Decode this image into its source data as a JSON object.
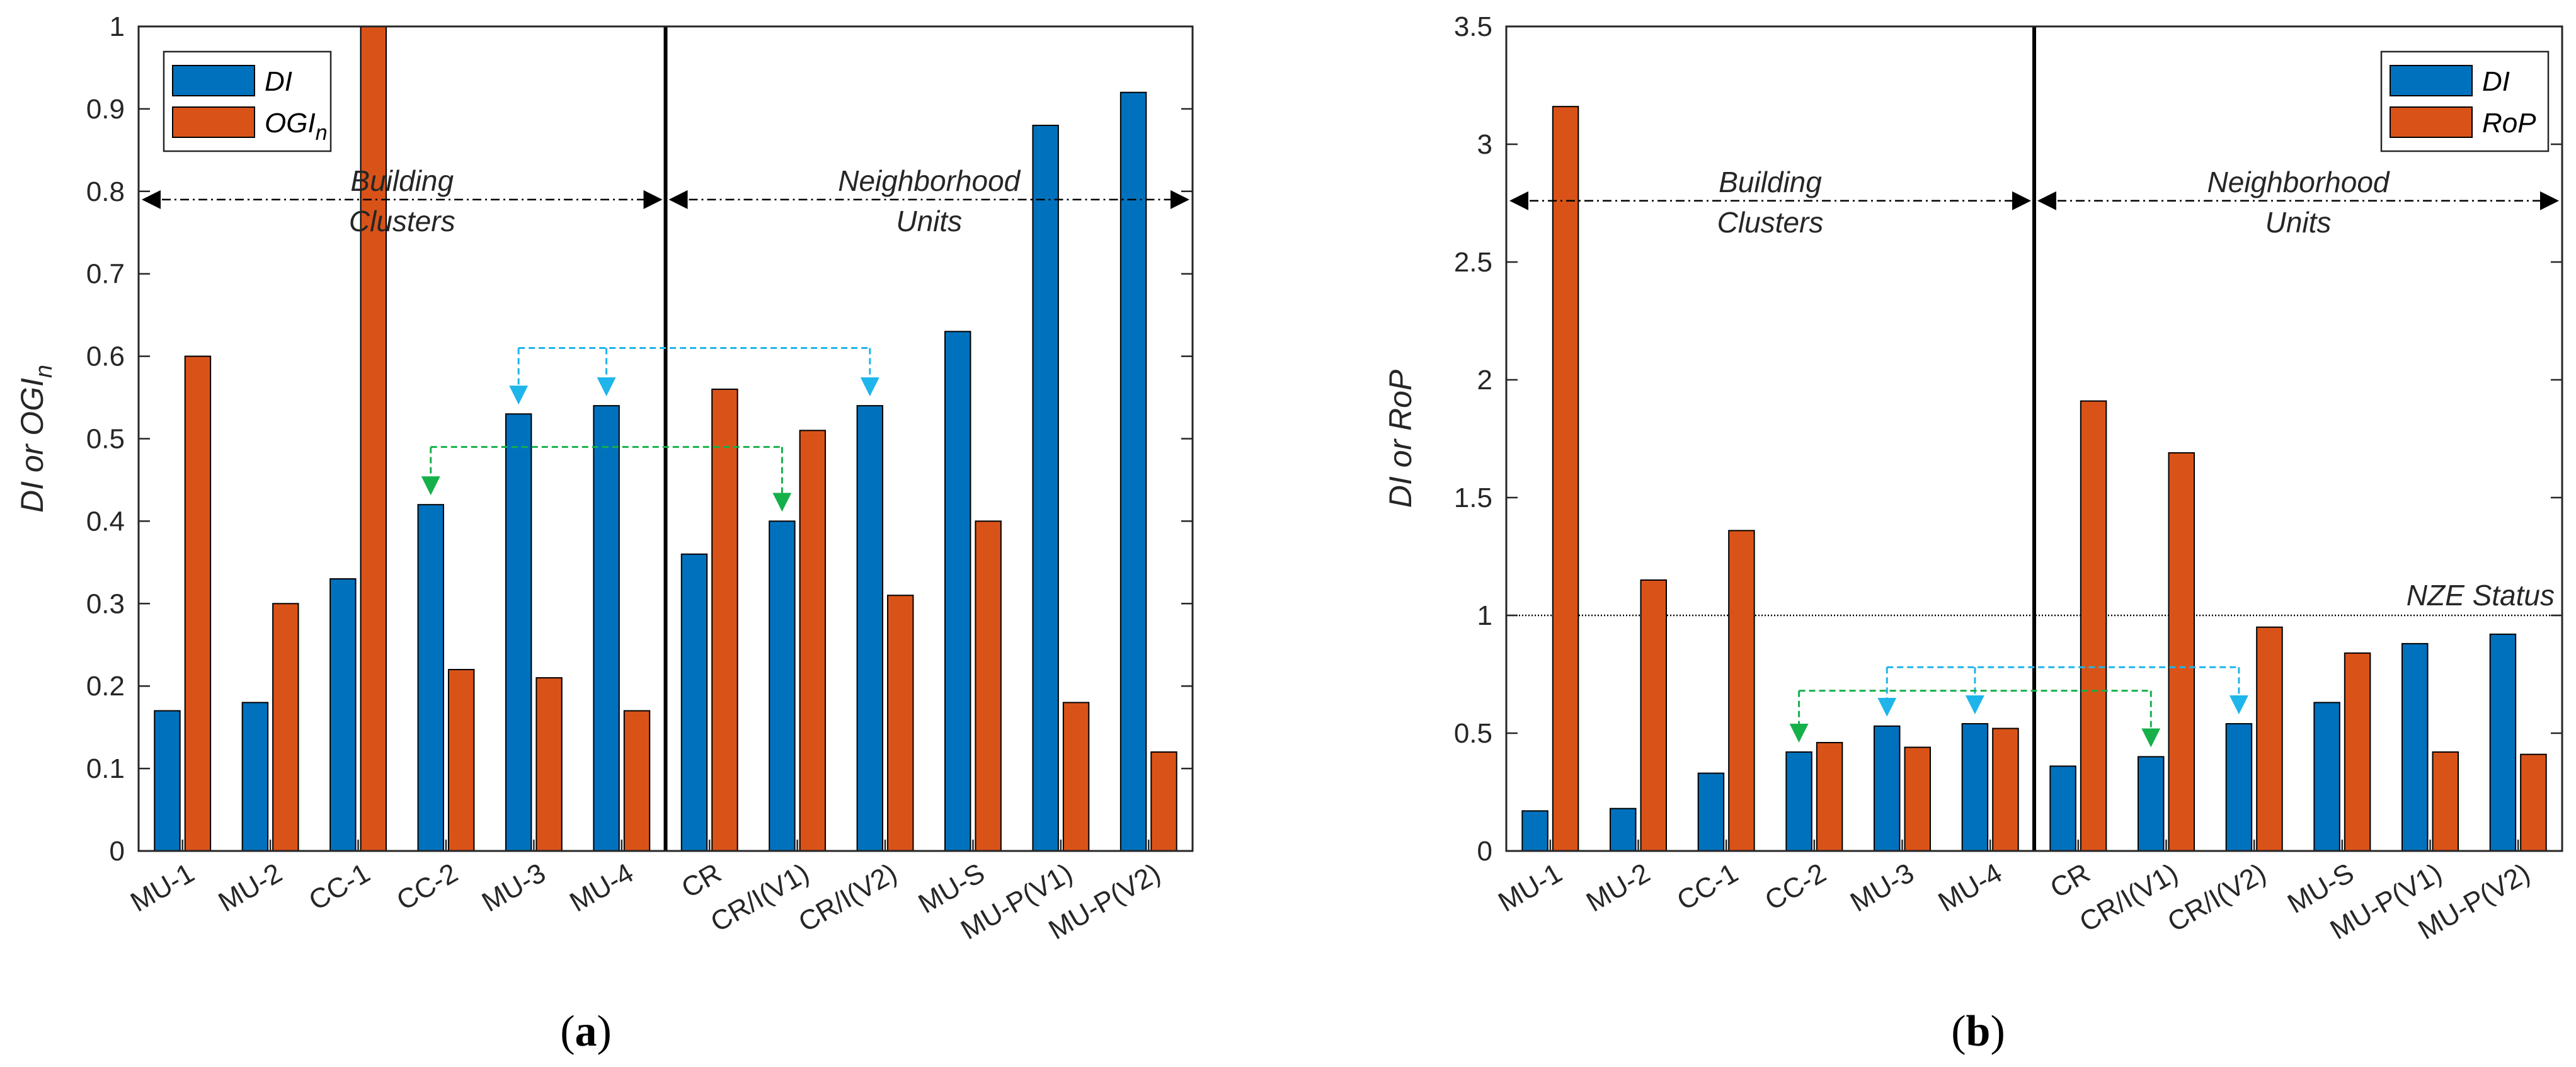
{
  "chart_data": [
    {
      "panel_label": "(a)",
      "panel_letter": "a",
      "type": "bar",
      "ylabel": "DI or OGI_n",
      "ylabel_main": "DI or OGI",
      "ylabel_sub": "n",
      "ylim": [
        0,
        1
      ],
      "yticks": [
        0,
        0.1,
        0.2,
        0.3,
        0.4,
        0.5,
        0.6,
        0.7,
        0.8,
        0.9,
        1
      ],
      "ytick_labels": [
        "0",
        "0.1",
        "0.2",
        "0.3",
        "0.4",
        "0.5",
        "0.6",
        "0.7",
        "0.8",
        "0.9",
        "1"
      ],
      "categories": [
        "MU-1",
        "MU-2",
        "CC-1",
        "CC-2",
        "MU-3",
        "MU-4",
        "CR",
        "CR/I(V1)",
        "CR/I(V2)",
        "MU-S",
        "MU-P(V1)",
        "MU-P(V2)"
      ],
      "series": [
        {
          "name": "DI",
          "name_sub": "",
          "color": "#0072BD",
          "values": [
            0.17,
            0.18,
            0.33,
            0.42,
            0.53,
            0.54,
            0.36,
            0.4,
            0.54,
            0.63,
            0.88,
            0.92
          ]
        },
        {
          "name": "OGI",
          "name_sub": "n",
          "color": "#D95319",
          "values": [
            0.6,
            0.3,
            1.0,
            0.22,
            0.21,
            0.17,
            0.56,
            0.51,
            0.31,
            0.4,
            0.18,
            0.12
          ]
        }
      ],
      "legend": {
        "entries": [
          "DI",
          "OGI_n"
        ],
        "position": "top-left"
      },
      "group_labels": [
        {
          "line1": "Building",
          "line2": "Clusters",
          "from_index": 0,
          "to_index": 5
        },
        {
          "line1": "Neighborhood",
          "line2": "Units",
          "from_index": 6,
          "to_index": 11
        }
      ],
      "group_arrow_y": 0.79,
      "divider_after_index": 5,
      "comparison_arrows": [
        {
          "color": "#1FB5EA",
          "line_y": 0.61,
          "targets": [
            4,
            5,
            8
          ]
        },
        {
          "color": "#16B04A",
          "line_y": 0.49,
          "targets": [
            3,
            7
          ]
        }
      ],
      "reference_line": null
    },
    {
      "panel_label": "(b)",
      "panel_letter": "b",
      "type": "bar",
      "ylabel": "DI or RoP",
      "ylabel_main": "DI or RoP",
      "ylabel_sub": "",
      "ylim": [
        0,
        3.5
      ],
      "yticks": [
        0,
        0.5,
        1,
        1.5,
        2,
        2.5,
        3,
        3.5
      ],
      "ytick_labels": [
        "0",
        "0.5",
        "1",
        "1.5",
        "2",
        "2.5",
        "3",
        "3.5"
      ],
      "categories": [
        "MU-1",
        "MU-2",
        "CC-1",
        "CC-2",
        "MU-3",
        "MU-4",
        "CR",
        "CR/I(V1)",
        "CR/I(V2)",
        "MU-S",
        "MU-P(V1)",
        "MU-P(V2)"
      ],
      "series": [
        {
          "name": "DI",
          "name_sub": "",
          "color": "#0072BD",
          "values": [
            0.17,
            0.18,
            0.33,
            0.42,
            0.53,
            0.54,
            0.36,
            0.4,
            0.54,
            0.63,
            0.88,
            0.92
          ]
        },
        {
          "name": "RoP",
          "name_sub": "",
          "color": "#D95319",
          "values": [
            3.16,
            1.15,
            1.36,
            0.46,
            0.44,
            0.52,
            1.91,
            1.69,
            0.95,
            0.84,
            0.42,
            0.41
          ]
        }
      ],
      "legend": {
        "entries": [
          "DI",
          "RoP"
        ],
        "position": "top-right"
      },
      "group_labels": [
        {
          "line1": "Building",
          "line2": "Clusters",
          "from_index": 0,
          "to_index": 5
        },
        {
          "line1": "Neighborhood",
          "line2": "Units",
          "from_index": 6,
          "to_index": 11
        }
      ],
      "group_arrow_y": 2.76,
      "divider_after_index": 5,
      "comparison_arrows": [
        {
          "color": "#1FB5EA",
          "line_y": 0.78,
          "targets": [
            4,
            5,
            8
          ]
        },
        {
          "color": "#16B04A",
          "line_y": 0.68,
          "targets": [
            3,
            7
          ]
        }
      ],
      "reference_line": {
        "y": 1.0,
        "label": "NZE Status"
      }
    }
  ]
}
